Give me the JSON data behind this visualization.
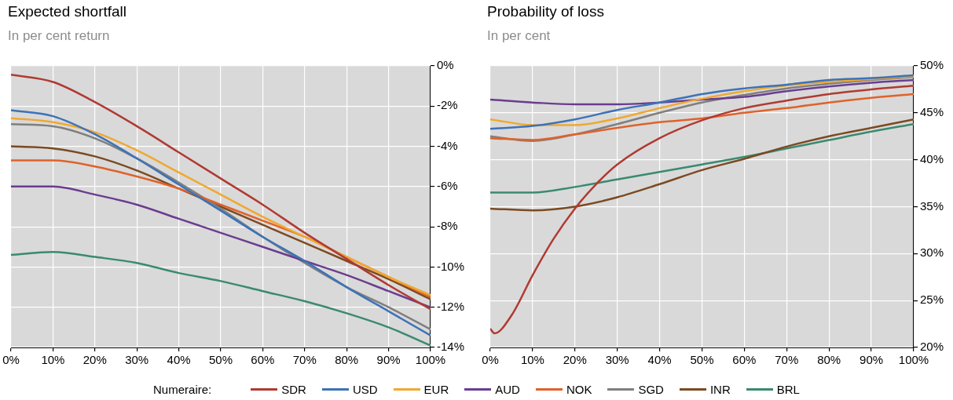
{
  "chart_data": [
    {
      "type": "line",
      "title": "Expected shortfall",
      "subtitle": "In per cent return",
      "legend": "bottom",
      "legend_title": "Numeraire:",
      "grid": true,
      "x": [
        0,
        10,
        20,
        30,
        40,
        50,
        60,
        70,
        80,
        90,
        100
      ],
      "xlim": [
        0,
        100
      ],
      "xticks": [
        {
          "value": 0,
          "label": "0%"
        },
        {
          "value": 10,
          "label": "10%"
        },
        {
          "value": 20,
          "label": "20%"
        },
        {
          "value": 30,
          "label": "30%"
        },
        {
          "value": 40,
          "label": "40%"
        },
        {
          "value": 50,
          "label": "50%"
        },
        {
          "value": 60,
          "label": "60%"
        },
        {
          "value": 70,
          "label": "70%"
        },
        {
          "value": 80,
          "label": "80%"
        },
        {
          "value": 90,
          "label": "90%"
        },
        {
          "value": 100,
          "label": "100%"
        }
      ],
      "ylim": [
        -14,
        0
      ],
      "yticks": [
        {
          "value": -14,
          "label": "-14%"
        },
        {
          "value": -12,
          "label": "-12%"
        },
        {
          "value": -10,
          "label": "-10%"
        },
        {
          "value": -8,
          "label": "-8%"
        },
        {
          "value": -6,
          "label": "-6%"
        },
        {
          "value": -4,
          "label": "-4%"
        },
        {
          "value": -2,
          "label": "-2%"
        },
        {
          "value": 0,
          "label": "0%"
        }
      ],
      "series": [
        {
          "name": "SDR",
          "color": "#b03a32",
          "values": [
            -0.44,
            -0.8,
            -1.8,
            -3.0,
            -4.3,
            -5.6,
            -6.9,
            -8.3,
            -9.6,
            -10.9,
            -12.1
          ]
        },
        {
          "name": "USD",
          "color": "#3d72b8",
          "values": [
            -2.2,
            -2.5,
            -3.4,
            -4.6,
            -5.9,
            -7.2,
            -8.5,
            -9.7,
            -11.0,
            -12.2,
            -13.4
          ]
        },
        {
          "name": "EUR",
          "color": "#f0a830",
          "values": [
            -2.6,
            -2.8,
            -3.3,
            -4.2,
            -5.3,
            -6.4,
            -7.5,
            -8.5,
            -9.5,
            -10.5,
            -11.4
          ]
        },
        {
          "name": "AUD",
          "color": "#6a3d8f",
          "values": [
            -6.0,
            -6.0,
            -6.4,
            -6.9,
            -7.6,
            -8.3,
            -9.0,
            -9.7,
            -10.4,
            -11.2,
            -12.0
          ]
        },
        {
          "name": "NOK",
          "color": "#e0622a",
          "values": [
            -4.7,
            -4.7,
            -5.0,
            -5.5,
            -6.1,
            -6.9,
            -7.7,
            -8.5,
            -9.5,
            -10.5,
            -11.5
          ]
        },
        {
          "name": "SGD",
          "color": "#7f7f7f",
          "values": [
            -2.9,
            -3.0,
            -3.6,
            -4.6,
            -5.8,
            -7.1,
            -8.5,
            -9.8,
            -11.0,
            -12.0,
            -13.1
          ]
        },
        {
          "name": "INR",
          "color": "#7b4a22",
          "values": [
            -4.0,
            -4.1,
            -4.5,
            -5.2,
            -6.1,
            -7.0,
            -7.9,
            -8.8,
            -9.7,
            -10.6,
            -11.6
          ]
        },
        {
          "name": "BRL",
          "color": "#3a8a70",
          "values": [
            -9.4,
            -9.25,
            -9.5,
            -9.8,
            -10.3,
            -10.7,
            -11.2,
            -11.7,
            -12.3,
            -13.0,
            -13.9
          ]
        }
      ]
    },
    {
      "type": "line",
      "title": "Probability of loss",
      "subtitle": "In per cent",
      "grid": true,
      "x": [
        0,
        10,
        20,
        30,
        40,
        50,
        60,
        70,
        80,
        90,
        100
      ],
      "xlim": [
        0,
        100
      ],
      "xticks": [
        {
          "value": 0,
          "label": "0%"
        },
        {
          "value": 10,
          "label": "10%"
        },
        {
          "value": 20,
          "label": "20%"
        },
        {
          "value": 30,
          "label": "30%"
        },
        {
          "value": 40,
          "label": "40%"
        },
        {
          "value": 50,
          "label": "50%"
        },
        {
          "value": 60,
          "label": "60%"
        },
        {
          "value": 70,
          "label": "70%"
        },
        {
          "value": 80,
          "label": "80%"
        },
        {
          "value": 90,
          "label": "90%"
        },
        {
          "value": 100,
          "label": "100%"
        }
      ],
      "ylim": [
        20,
        50
      ],
      "yticks": [
        {
          "value": 20,
          "label": "20%"
        },
        {
          "value": 25,
          "label": "25%"
        },
        {
          "value": 30,
          "label": "30%"
        },
        {
          "value": 35,
          "label": "35%"
        },
        {
          "value": 40,
          "label": "40%"
        },
        {
          "value": 45,
          "label": "45%"
        },
        {
          "value": 50,
          "label": "50%"
        }
      ],
      "series": [
        {
          "color": "#b03a32",
          "x": [
            0,
            1,
            5,
            10,
            15,
            20,
            25,
            30,
            40,
            50,
            60,
            70,
            80,
            90,
            100
          ],
          "values": [
            22.0,
            21.5,
            23.4,
            27.7,
            31.6,
            34.8,
            37.4,
            39.5,
            42.3,
            44.2,
            45.5,
            46.3,
            47.0,
            47.5,
            47.9
          ]
        },
        {
          "color": "#3d72b8",
          "values": [
            43.3,
            43.6,
            44.3,
            45.3,
            46.1,
            47.0,
            47.6,
            48.0,
            48.5,
            48.7,
            49.0
          ]
        },
        {
          "color": "#f0a830",
          "values": [
            44.3,
            43.7,
            43.7,
            44.4,
            45.5,
            46.5,
            47.3,
            47.9,
            48.3,
            48.6,
            48.9
          ]
        },
        {
          "color": "#6a3d8f",
          "values": [
            46.4,
            46.1,
            45.9,
            45.9,
            46.1,
            46.4,
            46.7,
            47.3,
            47.8,
            48.2,
            48.5
          ]
        },
        {
          "color": "#e0622a",
          "values": [
            42.3,
            42.1,
            42.7,
            43.4,
            44.0,
            44.4,
            45.0,
            45.5,
            46.1,
            46.6,
            47.0
          ]
        },
        {
          "color": "#7f7f7f",
          "values": [
            42.5,
            42.0,
            42.7,
            43.8,
            45.0,
            46.1,
            46.9,
            47.6,
            48.1,
            48.5,
            48.8
          ]
        },
        {
          "color": "#7b4a22",
          "values": [
            34.8,
            34.6,
            35.0,
            36.0,
            37.4,
            38.9,
            40.1,
            41.4,
            42.5,
            43.4,
            44.3
          ]
        },
        {
          "color": "#3a8a70",
          "values": [
            36.5,
            36.5,
            37.1,
            37.9,
            38.7,
            39.5,
            40.3,
            41.2,
            42.1,
            43.0,
            43.8
          ]
        }
      ]
    }
  ]
}
